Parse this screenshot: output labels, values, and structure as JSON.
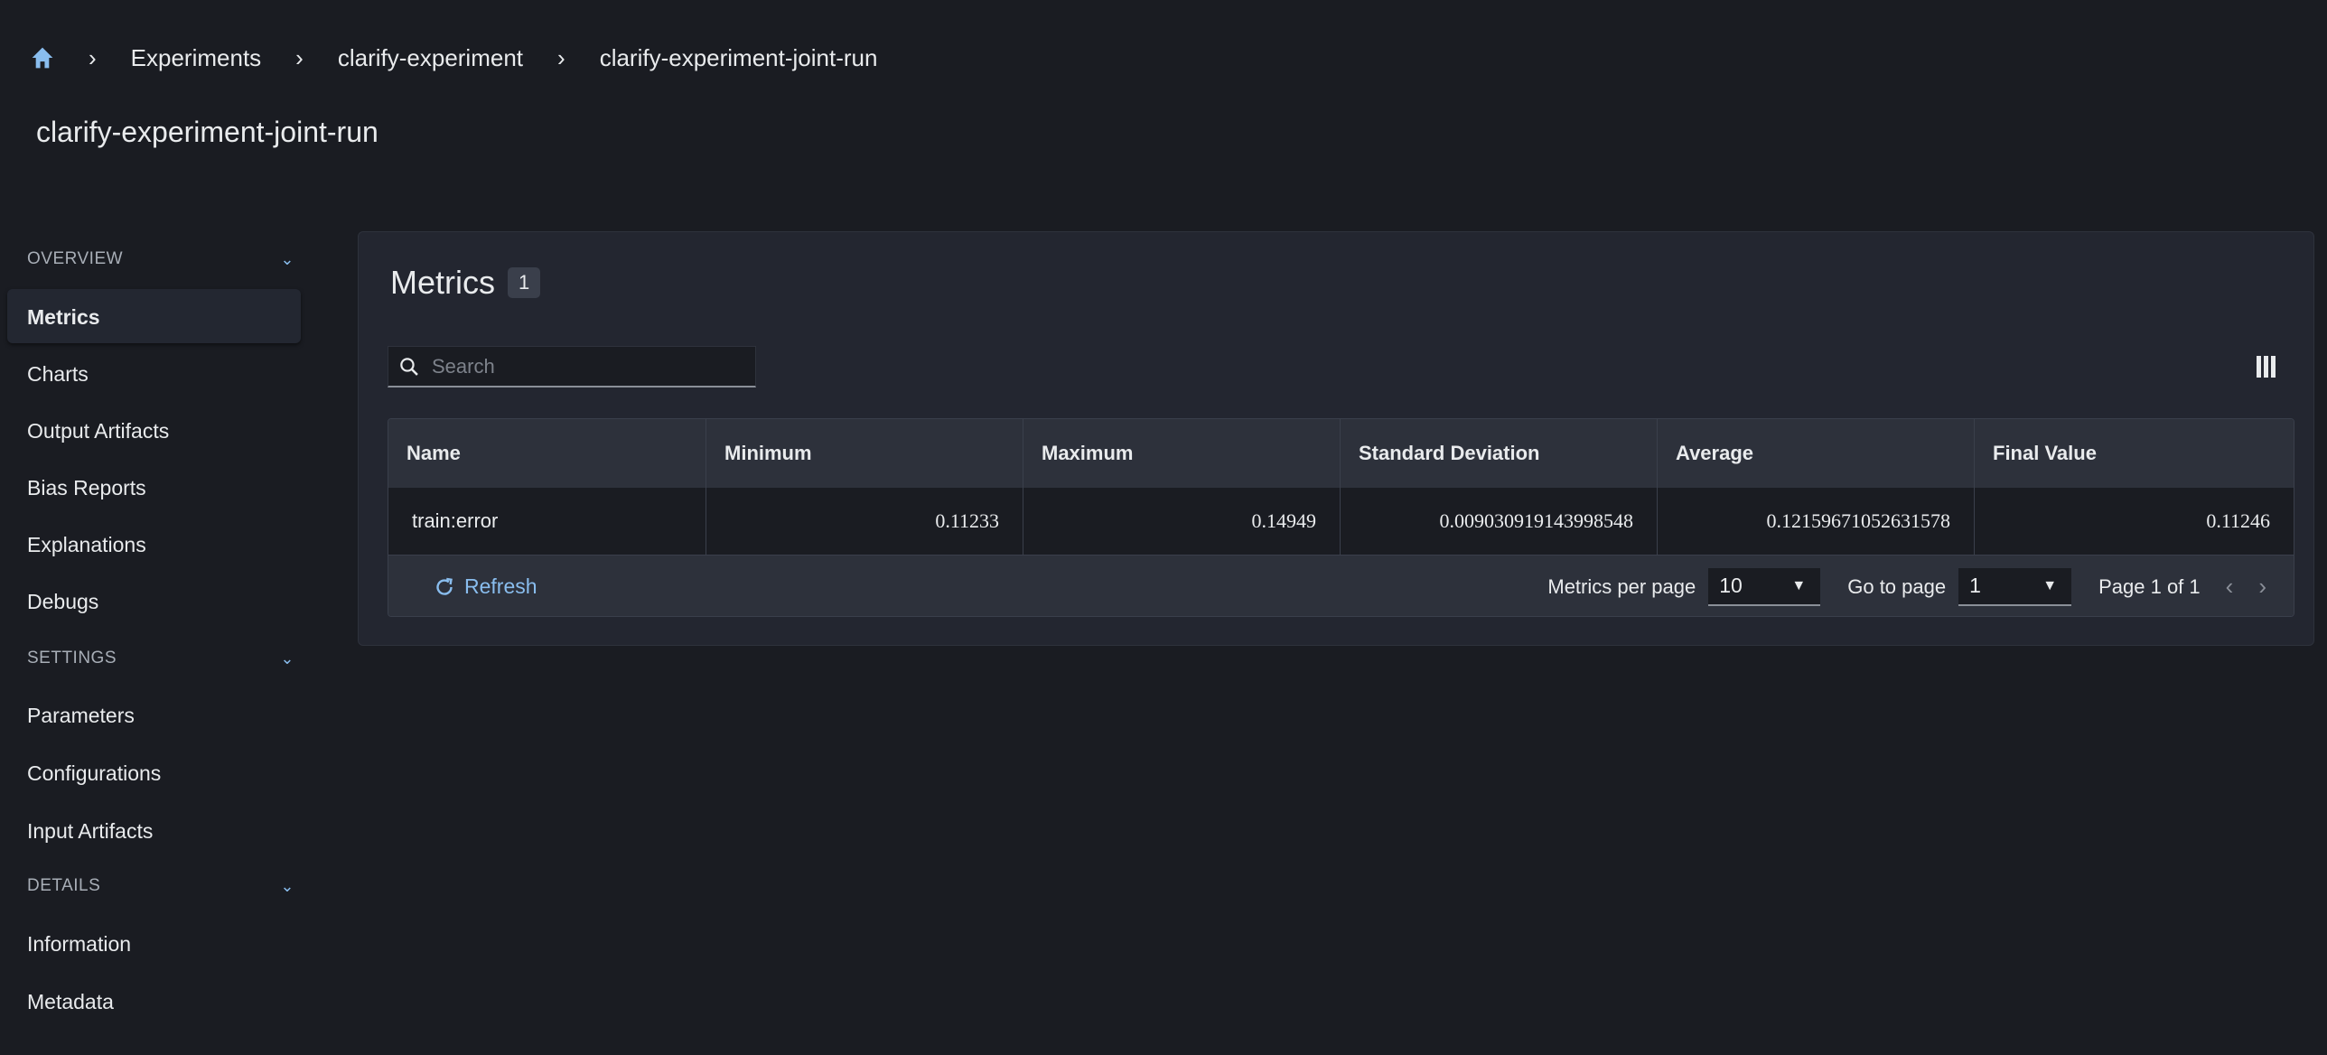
{
  "breadcrumb": {
    "items": [
      "Experiments",
      "clarify-experiment",
      "clarify-experiment-joint-run"
    ],
    "home_icon": "home-icon",
    "accent": "#89bdee"
  },
  "page_title": "clarify-experiment-joint-run",
  "sidebar": {
    "sections": [
      {
        "label": "OVERVIEW",
        "items": [
          "Metrics",
          "Charts",
          "Output Artifacts",
          "Bias Reports",
          "Explanations",
          "Debugs"
        ]
      },
      {
        "label": "SETTINGS",
        "items": [
          "Parameters",
          "Configurations",
          "Input Artifacts"
        ]
      },
      {
        "label": "DETAILS",
        "items": [
          "Information",
          "Metadata"
        ]
      }
    ],
    "active": "Metrics"
  },
  "metrics": {
    "title": "Metrics",
    "count": "1",
    "search_placeholder": "Search",
    "columns": [
      "Name",
      "Minimum",
      "Maximum",
      "Standard Deviation",
      "Average",
      "Final Value"
    ],
    "rows": [
      [
        "train:error",
        "0.11233",
        "0.14949",
        "0.009030919143998548",
        "0.12159671052631578",
        "0.11246"
      ]
    ],
    "footer": {
      "refresh": "Refresh",
      "per_page_label": "Metrics per page",
      "per_page": "10",
      "goto_label": "Go to page",
      "goto": "1",
      "page_info": "Page 1 of 1"
    }
  }
}
